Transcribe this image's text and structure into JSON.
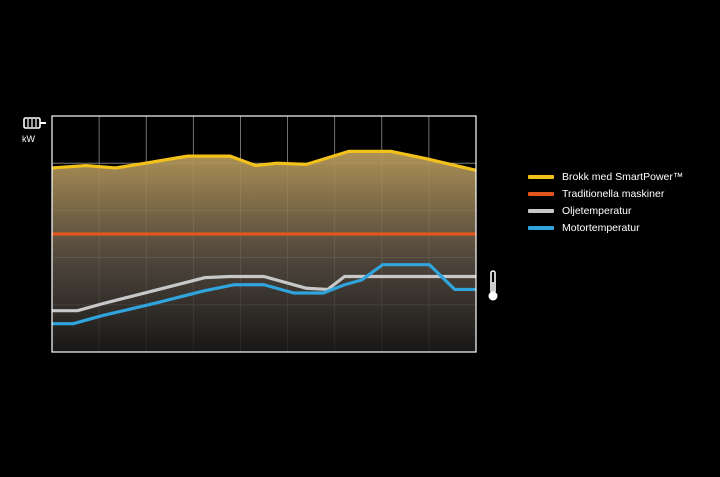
{
  "colors": {
    "background": "#000000",
    "grid": "#8a8a8a",
    "axis": "#ffffff",
    "smartpower": "#f2c21b",
    "traditional": "#e2561d",
    "oil": "#c8c8c8",
    "motor": "#2fa4dd"
  },
  "units": {
    "power": "kW"
  },
  "icons": {
    "power": "motor-icon",
    "temperature": "thermometer-icon"
  },
  "legend": [
    {
      "key": "smartpower",
      "label": "Brokk med SmartPower™"
    },
    {
      "key": "traditional",
      "label": "Traditionella maskiner"
    },
    {
      "key": "oil",
      "label": "Oljetemperatur"
    },
    {
      "key": "motor",
      "label": "Motortemperatur"
    }
  ],
  "chart_data": {
    "type": "line",
    "title": "",
    "xlabel": "",
    "ylabel": "kW",
    "grid": true,
    "xlim": [
      0,
      10
    ],
    "ylim": [
      0,
      10
    ],
    "legend_position": "right",
    "series": [
      {
        "name": "Brokk med SmartPower™",
        "key": "smartpower",
        "fill": true,
        "x": [
          0,
          0.8,
          1.5,
          2.2,
          3.2,
          4.2,
          4.8,
          5.3,
          6.0,
          7.0,
          8.0,
          8.8,
          10
        ],
        "y": [
          7.8,
          7.9,
          7.8,
          8.0,
          8.3,
          8.3,
          7.9,
          8.0,
          7.95,
          8.5,
          8.5,
          8.2,
          7.7
        ]
      },
      {
        "name": "Traditionella maskiner",
        "key": "traditional",
        "x": [
          0,
          10
        ],
        "y": [
          5.0,
          5.0
        ]
      },
      {
        "name": "Oljetemperatur",
        "key": "oil",
        "x": [
          0,
          0.6,
          1.2,
          2.4,
          3.6,
          4.2,
          5.0,
          6.0,
          6.5,
          6.9,
          10
        ],
        "y": [
          1.75,
          1.75,
          2.05,
          2.6,
          3.15,
          3.2,
          3.2,
          2.7,
          2.65,
          3.2,
          3.2
        ]
      },
      {
        "name": "Motortemperatur",
        "key": "motor",
        "x": [
          0,
          0.5,
          1.2,
          2.4,
          3.6,
          4.3,
          5.0,
          5.7,
          6.4,
          6.9,
          7.3,
          7.8,
          8.3,
          8.9,
          9.5,
          10
        ],
        "y": [
          1.2,
          1.2,
          1.55,
          2.05,
          2.6,
          2.85,
          2.85,
          2.5,
          2.5,
          2.85,
          3.05,
          3.7,
          3.7,
          3.7,
          2.65,
          2.65
        ]
      }
    ]
  }
}
